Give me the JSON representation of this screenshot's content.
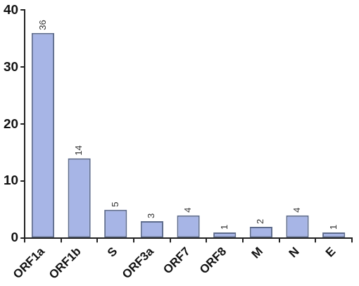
{
  "chart_data": {
    "type": "bar",
    "categories": [
      "ORF1a",
      "ORF1b",
      "S",
      "ORF3a",
      "ORF7",
      "ORF8",
      "M",
      "N",
      "E"
    ],
    "values": [
      36,
      14,
      5,
      3,
      4,
      1,
      2,
      4,
      1
    ],
    "color": "#a7b5e6",
    "ylim": [
      0,
      40
    ],
    "yticks": [
      0,
      10,
      20,
      30,
      40
    ],
    "grid": false,
    "data_labels": true
  }
}
